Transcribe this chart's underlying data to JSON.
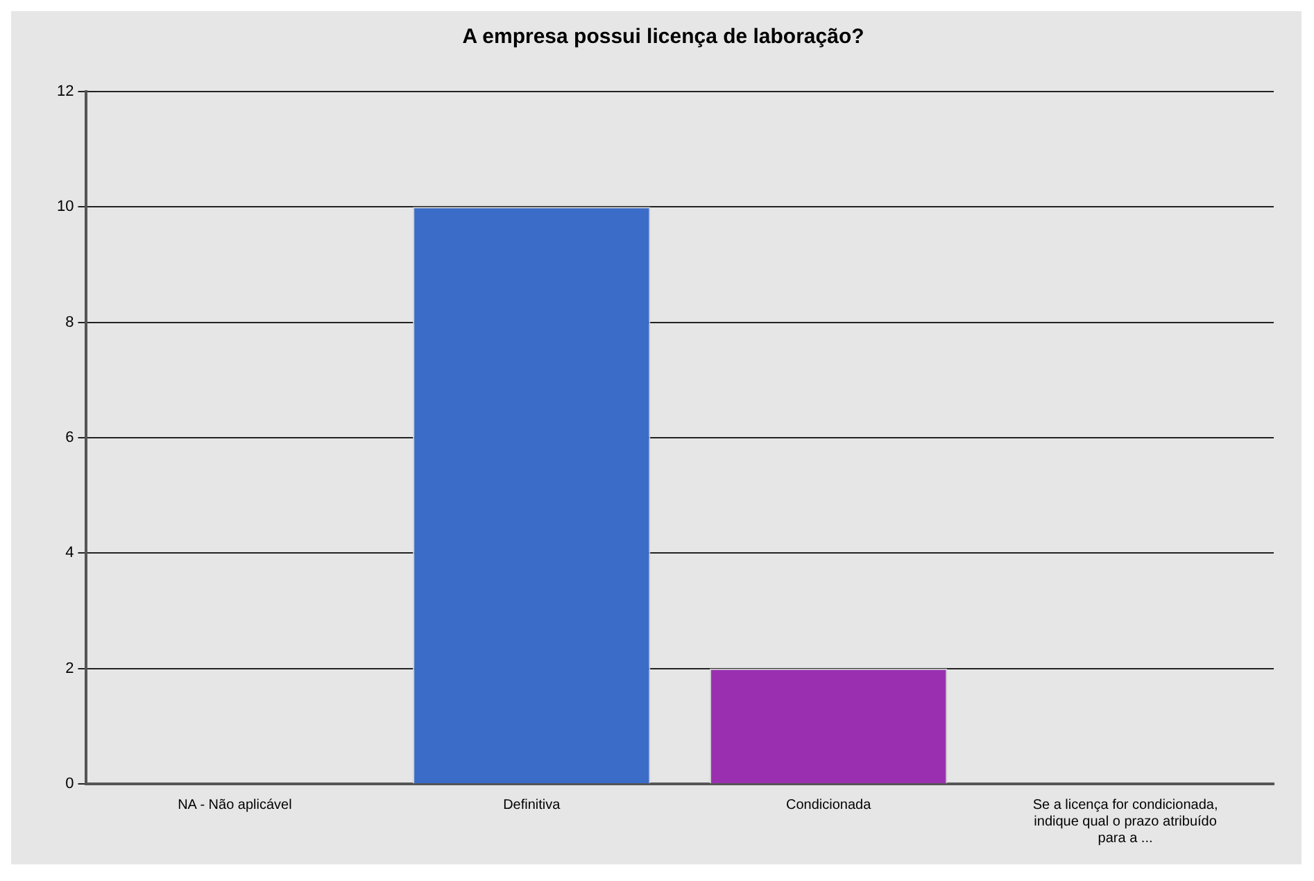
{
  "chart_data": {
    "type": "bar",
    "title": "A empresa possui licença de laboração?",
    "categories": [
      "NA - Não aplicável",
      "Definitiva",
      "Condicionada",
      "Se a licença for condicionada, indique qual o prazo atribuído para a ..."
    ],
    "values": [
      0,
      10,
      2,
      0
    ],
    "colors": [
      "#3a6cc8",
      "#3a6cc8",
      "#9a30b0",
      "#9a30b0"
    ],
    "ylim": [
      0,
      12
    ],
    "yticks": [
      0,
      2,
      4,
      6,
      8,
      10,
      12
    ],
    "grid": "y",
    "legend": false
  }
}
